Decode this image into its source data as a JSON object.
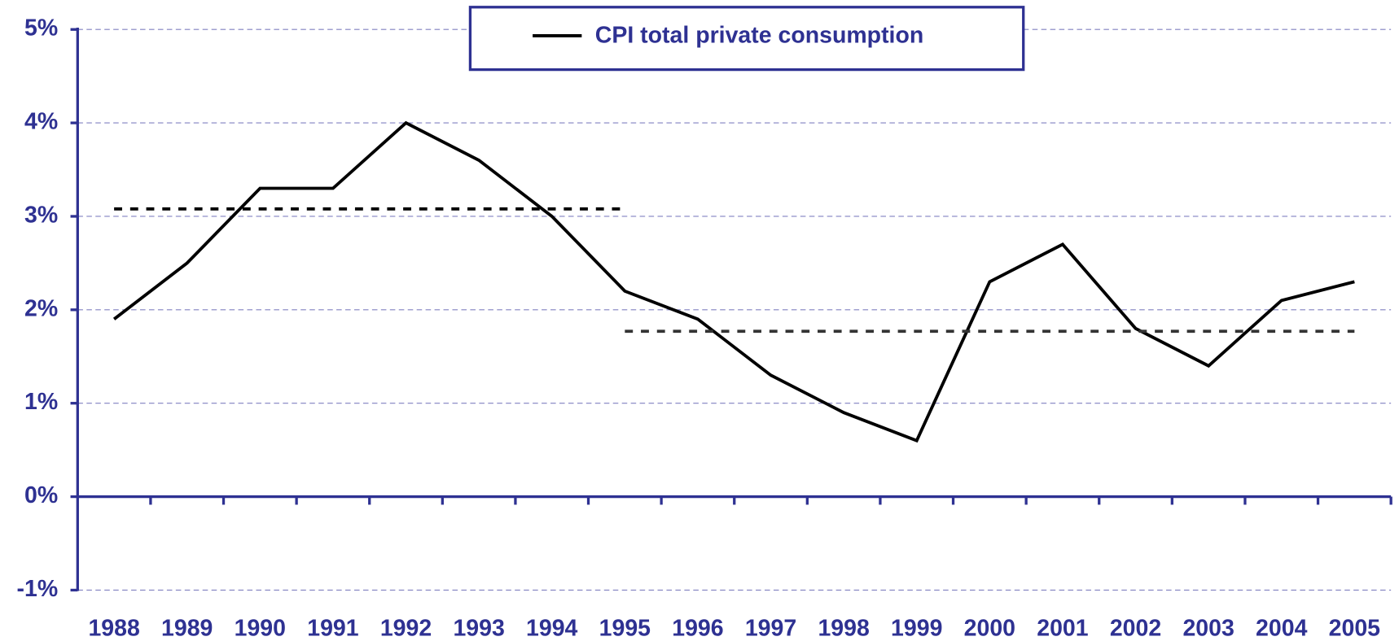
{
  "chart_data": {
    "type": "line",
    "categories": [
      "1988",
      "1989",
      "1990",
      "1991",
      "1992",
      "1993",
      "1994",
      "1995",
      "1996",
      "1997",
      "1998",
      "1999",
      "2000",
      "2001",
      "2002",
      "2003",
      "2004",
      "2005"
    ],
    "series": [
      {
        "name": "CPI total private consumption",
        "color": "#000000",
        "values": [
          1.9,
          2.5,
          3.3,
          3.3,
          4.0,
          3.6,
          3.0,
          2.2,
          1.9,
          1.3,
          0.9,
          0.6,
          2.3,
          2.7,
          1.8,
          1.4,
          2.1,
          2.3
        ]
      },
      {
        "color": "#000000",
        "dashed": true,
        "values": [
          3.08,
          3.08,
          3.08,
          3.08,
          3.08,
          3.08,
          3.08,
          3.08,
          null,
          null,
          null,
          null,
          null,
          null,
          null,
          null,
          null,
          null
        ]
      },
      {
        "color": "#333333",
        "dashed": true,
        "values": [
          null,
          null,
          null,
          null,
          null,
          null,
          null,
          1.77,
          1.77,
          1.77,
          1.77,
          1.77,
          1.77,
          1.77,
          1.77,
          1.77,
          1.77,
          1.77
        ]
      }
    ],
    "ylim": [
      -1,
      5
    ],
    "yticks": [
      {
        "value": -1,
        "label": "-1%"
      },
      {
        "value": 0,
        "label": "0%"
      },
      {
        "value": 1,
        "label": "1%"
      },
      {
        "value": 2,
        "label": "2%"
      },
      {
        "value": 3,
        "label": "3%"
      },
      {
        "value": 4,
        "label": "4%"
      },
      {
        "value": 5,
        "label": "5%"
      }
    ],
    "grid": true,
    "legend": "top"
  }
}
